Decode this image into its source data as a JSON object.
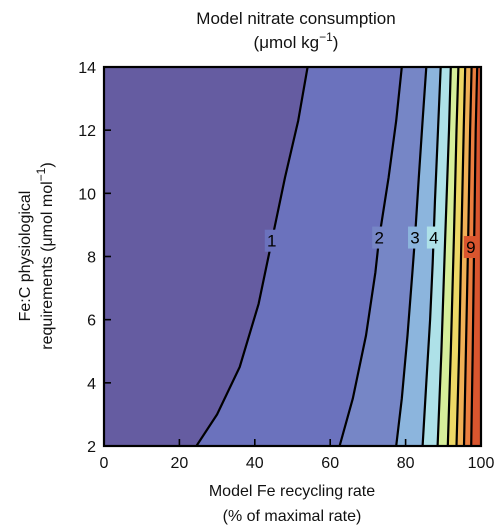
{
  "chart_data": {
    "type": "contour",
    "title_line1": "Model nitrate consumption",
    "title_line2_pre": "(μmol kg",
    "title_line2_sup": "−1",
    "title_line2_post": ")",
    "xlabel_line1": "Model Fe recycling rate",
    "xlabel_line2": "(% of maximal rate)",
    "ylabel_line1": "Fe:C physiological",
    "ylabel_line2_pre": "requirements (μmol mol",
    "ylabel_line2_sup": "−1",
    "ylabel_line2_post": ")",
    "xlim": [
      0,
      100
    ],
    "ylim": [
      2,
      14
    ],
    "x_ticks": [
      "0",
      "20",
      "40",
      "60",
      "80",
      "100"
    ],
    "y_ticks": [
      "2",
      "4",
      "6",
      "8",
      "10",
      "12",
      "14"
    ],
    "x_tick_values": [
      0,
      20,
      40,
      60,
      80,
      100
    ],
    "y_tick_values": [
      2,
      4,
      6,
      8,
      10,
      12,
      14
    ],
    "contours": [
      {
        "level": 1,
        "label": "1",
        "label_at": [
          44.5,
          8.5
        ],
        "points": [
          [
            24.5,
            2
          ],
          [
            30,
            3
          ],
          [
            36,
            4.5
          ],
          [
            41,
            6.5
          ],
          [
            44.5,
            8.5
          ],
          [
            48,
            10.5
          ],
          [
            51.5,
            12.3
          ],
          [
            54,
            14
          ]
        ]
      },
      {
        "level": 2,
        "label": "2",
        "label_at": [
          73,
          8.6
        ],
        "points": [
          [
            62.5,
            2
          ],
          [
            66,
            3.5
          ],
          [
            69.5,
            5.5
          ],
          [
            72,
            7.5
          ],
          [
            73,
            8.6
          ],
          [
            75.5,
            10.5
          ],
          [
            77.5,
            12.3
          ],
          [
            79,
            14
          ]
        ]
      },
      {
        "level": 3,
        "label": "3",
        "label_at": [
          82.5,
          8.6
        ],
        "points": [
          [
            77.5,
            2
          ],
          [
            79,
            3.5
          ],
          [
            80.5,
            5.5
          ],
          [
            81.8,
            7.5
          ],
          [
            82.5,
            8.6
          ],
          [
            83.5,
            10.5
          ],
          [
            84.5,
            12.3
          ],
          [
            85.5,
            14
          ]
        ]
      },
      {
        "level": 4,
        "label": "4",
        "label_at": [
          87.5,
          8.6
        ],
        "points": [
          [
            84.5,
            2
          ],
          [
            85.5,
            4
          ],
          [
            86.5,
            6
          ],
          [
            87.2,
            7.8
          ],
          [
            87.8,
            9.8
          ],
          [
            88.6,
            12
          ],
          [
            89.3,
            14
          ]
        ]
      },
      {
        "level": 5,
        "points": [
          [
            88.5,
            2
          ],
          [
            89.5,
            5
          ],
          [
            90.5,
            8.6
          ],
          [
            91.5,
            12
          ],
          [
            92,
            14
          ]
        ]
      },
      {
        "level": 6,
        "points": [
          [
            91.2,
            2
          ],
          [
            92,
            5
          ],
          [
            92.8,
            8.6
          ],
          [
            93.5,
            12
          ],
          [
            94,
            14
          ]
        ]
      },
      {
        "level": 7,
        "points": [
          [
            93.5,
            2
          ],
          [
            94.2,
            5
          ],
          [
            94.8,
            8.6
          ],
          [
            95.4,
            12
          ],
          [
            95.8,
            14
          ]
        ]
      },
      {
        "level": 8,
        "points": [
          [
            95.5,
            2
          ],
          [
            96,
            5
          ],
          [
            96.6,
            8.6
          ],
          [
            97.1,
            12
          ],
          [
            97.5,
            14
          ]
        ]
      },
      {
        "level": 9,
        "label": "9",
        "label_at": [
          97.3,
          8.3
        ],
        "points": [
          [
            97.4,
            2
          ],
          [
            97.8,
            5
          ],
          [
            98.2,
            8.6
          ],
          [
            98.6,
            12
          ],
          [
            99,
            14
          ]
        ]
      }
    ],
    "colors": [
      "#655ca1",
      "#6b72bd",
      "#7686c6",
      "#8cb5dd",
      "#aee1e8",
      "#d6ee9a",
      "#edd866",
      "#f0b056",
      "#eb7e3f",
      "#d9552e"
    ]
  }
}
